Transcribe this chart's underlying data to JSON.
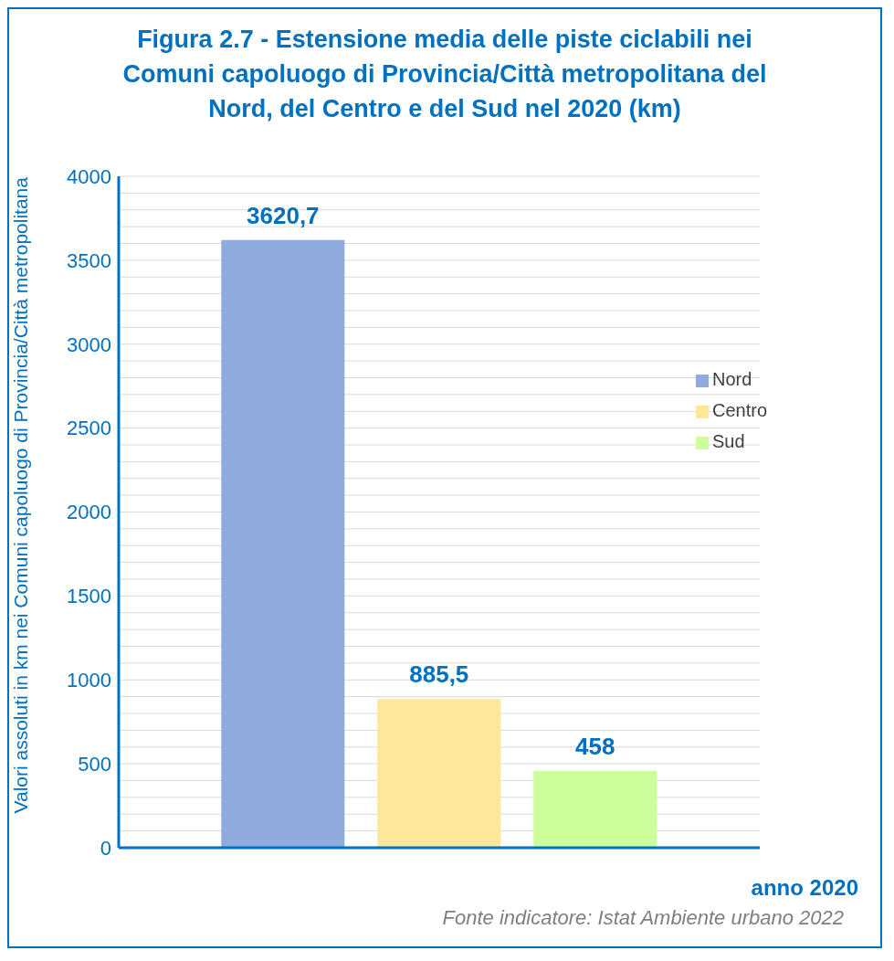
{
  "chart_data": {
    "type": "bar",
    "title": "Figura 2.7 - Estensione media delle piste ciclabili nei Comuni capoluogo di Provincia/Città metropolitana del Nord, del Centro e del Sud nel 2020 (km)",
    "xlabel": "anno 2020",
    "ylabel": "Valori assoluti in km nei Comuni capoluogo di Provincia/Città metropolitana",
    "categories": [
      null
    ],
    "series": [
      {
        "name": "Nord",
        "color": "#8faadc",
        "values": [
          3620.7
        ],
        "value_labels": [
          "3620,7"
        ]
      },
      {
        "name": "Centro",
        "color": "#ffe699",
        "values": [
          885.5
        ],
        "value_labels": [
          "885,5"
        ]
      },
      {
        "name": "Sud",
        "color": "#ccff99",
        "values": [
          458
        ],
        "value_labels": [
          "458"
        ]
      }
    ],
    "ylim": [
      0,
      4000
    ],
    "yticks": [
      0,
      {
        "value": 100,
        "label": null
      },
      {
        "value": 200,
        "label": null
      },
      {
        "value": 300,
        "label": null
      },
      {
        "value": 400,
        "label": null
      },
      500,
      {
        "value": 600,
        "label": null
      },
      {
        "value": 700,
        "label": null
      },
      {
        "value": 800,
        "label": null
      },
      {
        "value": 900,
        "label": null
      },
      1000,
      {
        "value": 1100,
        "label": null
      },
      {
        "value": 1200,
        "label": null
      },
      {
        "value": 1300,
        "label": null
      },
      {
        "value": 1400,
        "label": null
      },
      1500,
      {
        "value": 1600,
        "label": null
      },
      {
        "value": 1700,
        "label": null
      },
      {
        "value": 1800,
        "label": null
      },
      {
        "value": 1900,
        "label": null
      },
      2000,
      {
        "value": 2100,
        "label": null
      },
      {
        "value": 2200,
        "label": null
      },
      {
        "value": 2300,
        "label": null
      },
      {
        "value": 2400,
        "label": null
      },
      2500,
      {
        "value": 2600,
        "label": null
      },
      {
        "value": 2700,
        "label": null
      },
      {
        "value": 2800,
        "label": null
      },
      {
        "value": 2900,
        "label": null
      },
      3000,
      {
        "value": 3100,
        "label": null
      },
      {
        "value": 3200,
        "label": null
      },
      {
        "value": 3300,
        "label": null
      },
      {
        "value": 3400,
        "label": null
      },
      3500,
      {
        "value": 3600,
        "label": null
      },
      {
        "value": 3700,
        "label": null
      },
      {
        "value": 3800,
        "label": null
      },
      {
        "value": 3900,
        "label": null
      },
      4000
    ],
    "grid": "y",
    "legend": "top right",
    "annotations": [
      "Fonte indicatore: Istat Ambiente urbano 2022"
    ]
  }
}
